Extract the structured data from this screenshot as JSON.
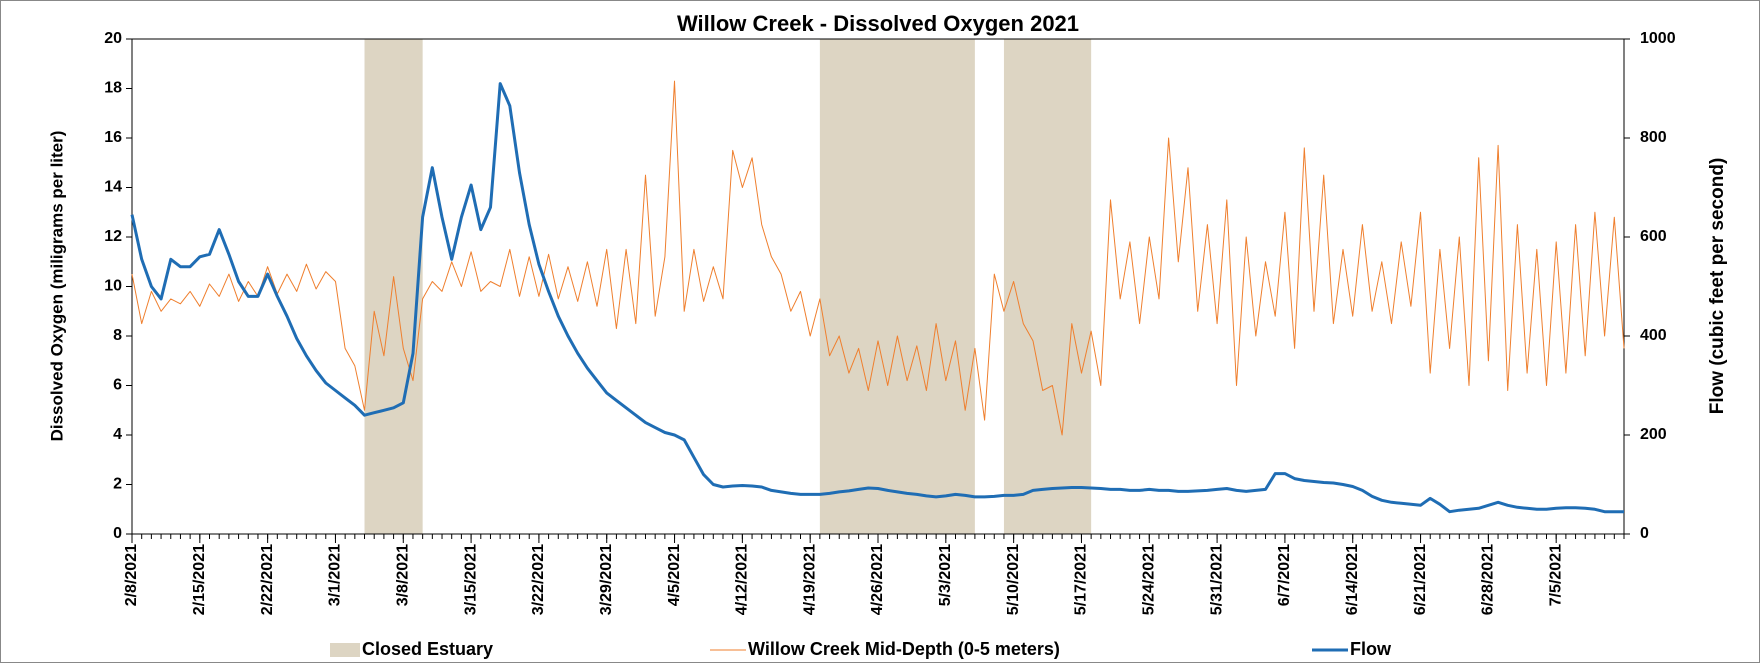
{
  "chart_data": {
    "type": "line",
    "title": "Willow Creek - Dissolved Oxygen 2021",
    "y_label": "Dissolved Oxygen (miligrams per liter)",
    "y2_label": "Flow (cubic feet per second)",
    "xlim": [
      "2/8/2021",
      "7/12/2021"
    ],
    "xticks": [
      "2/8/2021",
      "2/15/2021",
      "2/22/2021",
      "3/1/2021",
      "3/8/2021",
      "3/15/2021",
      "3/22/2021",
      "3/29/2021",
      "4/5/2021",
      "4/12/2021",
      "4/19/2021",
      "4/26/2021",
      "5/3/2021",
      "5/10/2021",
      "5/17/2021",
      "5/24/2021",
      "5/31/2021",
      "6/7/2021",
      "6/14/2021",
      "6/21/2021",
      "6/28/2021",
      "7/5/2021"
    ],
    "ylim": [
      0,
      20
    ],
    "yticks": [
      0,
      2,
      4,
      6,
      8,
      10,
      12,
      14,
      16,
      18,
      20
    ],
    "y2lim": [
      0,
      1000
    ],
    "y2ticks": [
      0,
      200,
      400,
      600,
      800,
      1000
    ],
    "shaded": {
      "name": "Closed Estuary",
      "color": "#ddd5c3",
      "ranges": [
        [
          "3/4/2021",
          "3/10/2021"
        ],
        [
          "4/20/2021",
          "5/6/2021"
        ],
        [
          "5/9/2021",
          "5/18/2021"
        ]
      ]
    },
    "x": [
      "2/8/2021",
      "2/9/2021",
      "2/10/2021",
      "2/11/2021",
      "2/12/2021",
      "2/13/2021",
      "2/14/2021",
      "2/15/2021",
      "2/16/2021",
      "2/17/2021",
      "2/18/2021",
      "2/19/2021",
      "2/20/2021",
      "2/21/2021",
      "2/22/2021",
      "2/23/2021",
      "2/24/2021",
      "2/25/2021",
      "2/26/2021",
      "2/27/2021",
      "2/28/2021",
      "3/1/2021",
      "3/2/2021",
      "3/3/2021",
      "3/4/2021",
      "3/5/2021",
      "3/6/2021",
      "3/7/2021",
      "3/8/2021",
      "3/9/2021",
      "3/10/2021",
      "3/11/2021",
      "3/12/2021",
      "3/13/2021",
      "3/14/2021",
      "3/15/2021",
      "3/16/2021",
      "3/17/2021",
      "3/18/2021",
      "3/19/2021",
      "3/20/2021",
      "3/21/2021",
      "3/22/2021",
      "3/23/2021",
      "3/24/2021",
      "3/25/2021",
      "3/26/2021",
      "3/27/2021",
      "3/28/2021",
      "3/29/2021",
      "3/30/2021",
      "3/31/2021",
      "4/1/2021",
      "4/2/2021",
      "4/3/2021",
      "4/4/2021",
      "4/5/2021",
      "4/6/2021",
      "4/7/2021",
      "4/8/2021",
      "4/9/2021",
      "4/10/2021",
      "4/11/2021",
      "4/12/2021",
      "4/13/2021",
      "4/14/2021",
      "4/15/2021",
      "4/16/2021",
      "4/17/2021",
      "4/18/2021",
      "4/19/2021",
      "4/20/2021",
      "4/21/2021",
      "4/22/2021",
      "4/23/2021",
      "4/24/2021",
      "4/25/2021",
      "4/26/2021",
      "4/27/2021",
      "4/28/2021",
      "4/29/2021",
      "4/30/2021",
      "5/1/2021",
      "5/2/2021",
      "5/3/2021",
      "5/4/2021",
      "5/5/2021",
      "5/6/2021",
      "5/7/2021",
      "5/8/2021",
      "5/9/2021",
      "5/10/2021",
      "5/11/2021",
      "5/12/2021",
      "5/13/2021",
      "5/14/2021",
      "5/15/2021",
      "5/16/2021",
      "5/17/2021",
      "5/18/2021",
      "5/19/2021",
      "5/20/2021",
      "5/21/2021",
      "5/22/2021",
      "5/23/2021",
      "5/24/2021",
      "5/25/2021",
      "5/26/2021",
      "5/27/2021",
      "5/28/2021",
      "5/29/2021",
      "5/30/2021",
      "5/31/2021",
      "6/1/2021",
      "6/2/2021",
      "6/3/2021",
      "6/4/2021",
      "6/5/2021",
      "6/6/2021",
      "6/7/2021",
      "6/8/2021",
      "6/9/2021",
      "6/10/2021",
      "6/11/2021",
      "6/12/2021",
      "6/13/2021",
      "6/14/2021",
      "6/15/2021",
      "6/16/2021",
      "6/17/2021",
      "6/18/2021",
      "6/19/2021",
      "6/20/2021",
      "6/21/2021",
      "6/22/2021",
      "6/23/2021",
      "6/24/2021",
      "6/25/2021",
      "6/26/2021",
      "6/27/2021",
      "6/28/2021",
      "6/29/2021",
      "6/30/2021",
      "7/1/2021",
      "7/2/2021",
      "7/3/2021",
      "7/4/2021",
      "7/5/2021",
      "7/6/2021",
      "7/7/2021",
      "7/8/2021",
      "7/9/2021",
      "7/10/2021",
      "7/11/2021",
      "7/12/2021"
    ],
    "series": [
      {
        "name": "Willow Creek Mid-Depth (0-5 meters)",
        "color": "#ef7f2e",
        "width": 1,
        "values": [
          10.5,
          8.5,
          9.8,
          9.0,
          9.5,
          9.3,
          9.8,
          9.2,
          10.1,
          9.6,
          10.5,
          9.4,
          10.2,
          9.6,
          10.8,
          9.7,
          10.5,
          9.8,
          10.9,
          9.9,
          10.6,
          10.2,
          7.5,
          6.8,
          5.0,
          9.0,
          7.2,
          10.4,
          7.5,
          6.2,
          9.5,
          10.2,
          9.8,
          11.0,
          10.0,
          11.4,
          9.8,
          10.2,
          10.0,
          11.5,
          9.6,
          11.2,
          9.6,
          11.3,
          9.5,
          10.8,
          9.4,
          11.0,
          9.2,
          11.5,
          8.3,
          11.5,
          8.5,
          14.5,
          8.8,
          11.2,
          18.3,
          9.0,
          11.5,
          9.4,
          10.8,
          9.5,
          15.5,
          14.0,
          15.2,
          12.5,
          11.2,
          10.5,
          9.0,
          9.8,
          8.0,
          9.5,
          7.2,
          8.0,
          6.5,
          7.5,
          5.8,
          7.8,
          6.0,
          8.0,
          6.2,
          7.6,
          5.8,
          8.5,
          6.2,
          7.8,
          5.0,
          7.5,
          4.6,
          10.5,
          9.0,
          10.2,
          8.5,
          7.8,
          5.8,
          6.0,
          4.0,
          8.5,
          6.5,
          8.2,
          6.0,
          13.5,
          9.5,
          11.8,
          8.5,
          12.0,
          9.5,
          16.0,
          11.0,
          14.8,
          9.0,
          12.5,
          8.5,
          13.5,
          6.0,
          12.0,
          8.0,
          11.0,
          8.8,
          13.0,
          7.5,
          15.6,
          9.0,
          14.5,
          8.5,
          11.5,
          8.8,
          12.5,
          9.0,
          11.0,
          8.5,
          11.8,
          9.2,
          13.0,
          6.5,
          11.5,
          7.5,
          12.0,
          6.0,
          15.2,
          7.0,
          15.7,
          5.8,
          12.5,
          6.5,
          11.5,
          6.0,
          11.8,
          6.5,
          12.5,
          7.2,
          13.0,
          8.0,
          12.8,
          7.5
        ]
      },
      {
        "name": "Flow",
        "color": "#1f6db4",
        "width": 3,
        "axis": "y2",
        "values": [
          645,
          555,
          500,
          475,
          555,
          540,
          540,
          560,
          565,
          615,
          565,
          510,
          480,
          480,
          525,
          480,
          440,
          395,
          360,
          330,
          305,
          290,
          275,
          260,
          240,
          245,
          250,
          255,
          265,
          365,
          640,
          740,
          640,
          555,
          640,
          705,
          615,
          660,
          910,
          865,
          730,
          625,
          545,
          490,
          440,
          400,
          365,
          335,
          310,
          285,
          270,
          255,
          240,
          225,
          215,
          205,
          200,
          190,
          155,
          120,
          100,
          95,
          97,
          98,
          97,
          95,
          88,
          85,
          82,
          80,
          80,
          80,
          82,
          85,
          87,
          90,
          93,
          92,
          88,
          85,
          82,
          80,
          77,
          75,
          77,
          80,
          78,
          75,
          75,
          76,
          78,
          78,
          80,
          88,
          90,
          92,
          93,
          94,
          94,
          93,
          92,
          90,
          90,
          88,
          88,
          90,
          88,
          88,
          86,
          86,
          87,
          88,
          90,
          92,
          88,
          86,
          88,
          90,
          122,
          122,
          112,
          108,
          106,
          104,
          103,
          100,
          96,
          88,
          76,
          68,
          64,
          62,
          60,
          58,
          72,
          60,
          45,
          48,
          50,
          52,
          58,
          64,
          58,
          54,
          52,
          50,
          50,
          52,
          53,
          53,
          52,
          50,
          45,
          45,
          45
        ]
      }
    ]
  }
}
